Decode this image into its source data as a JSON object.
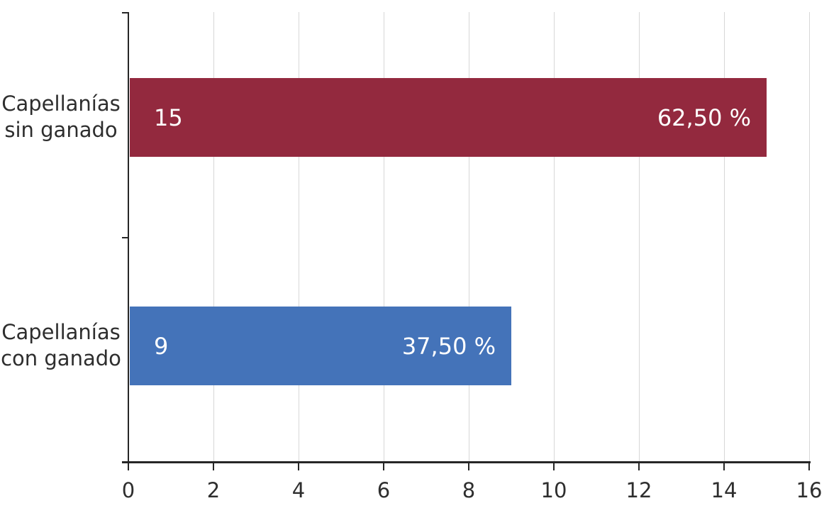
{
  "chart_data": {
    "type": "bar",
    "orientation": "horizontal",
    "title": "",
    "categories": [
      "Capellanías sin ganado",
      "Capellanías con ganado"
    ],
    "category_labels_two_line": [
      "Capellanías\nsin ganado",
      "Capellanías\ncon ganado"
    ],
    "values": [
      15,
      9
    ],
    "value_labels": [
      "15",
      "9"
    ],
    "percent_labels": [
      "62,50 %",
      "37,50 %"
    ],
    "bar_colors": [
      "#93293E",
      "#4473B9"
    ],
    "xlabel": "",
    "ylabel": "",
    "xlim": [
      0,
      16
    ],
    "x_ticks": [
      0,
      2,
      4,
      6,
      8,
      10,
      12,
      14,
      16
    ],
    "grid": "vertical gridlines at each x tick",
    "legend": "none"
  },
  "colors": {
    "bar_sin_ganado": "#93293E",
    "bar_con_ganado": "#4473B9",
    "axis": "#262626",
    "gridline": "#D7D7D7",
    "text": "#2E2E2E",
    "bar_label_text": "#FFFFFF",
    "background": "#FFFFFF"
  }
}
